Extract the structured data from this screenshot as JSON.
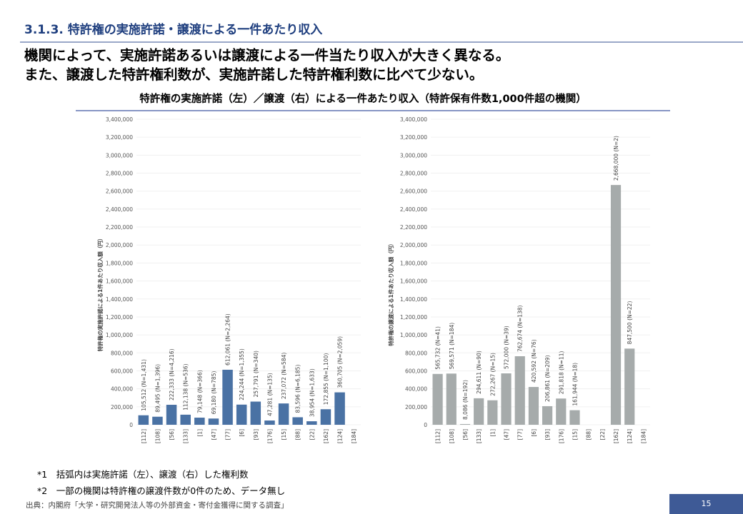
{
  "section_title": "3.1.3. 特許権の実施許諾・譲渡による一件あたり収入",
  "headline": [
    "機関によって、実施許諾あるいは譲渡による一件当たり収入が大きく異なる。",
    "また、譲渡した特許権利数が、実施許諾した特許権利数に比べて少ない。"
  ],
  "chart_title": "特許権の実施許諾（左）／譲渡（右）による一件あたり収入（特許保有件数1,000件超の機関）",
  "chart_data": [
    {
      "type": "bar",
      "ylabel": "特許権の実施許諾による1件あたり収入額（円）",
      "ylim": [
        0,
        3400000
      ],
      "yticks": [
        "0",
        "200,000",
        "400,000",
        "600,000",
        "800,000",
        "1,000,000",
        "1,200,000",
        "1,400,000",
        "1,600,000",
        "1,800,000",
        "2,000,000",
        "2,200,000",
        "2,400,000",
        "2,600,000",
        "2,800,000",
        "3,000,000",
        "3,200,000",
        "3,400,000"
      ],
      "grid": true,
      "color": "#4a72a4",
      "categories": [
        "[112]",
        "[108]",
        "[56]",
        "[133]",
        "[1]",
        "[47]",
        "[77]",
        "[6]",
        "[93]",
        "[176]",
        "[15]",
        "[88]",
        "[22]",
        "[162]",
        "[124]",
        "[184]"
      ],
      "values": [
        105512,
        89495,
        222333,
        112138,
        79148,
        69180,
        612061,
        224244,
        257791,
        47281,
        237072,
        83596,
        38954,
        172855,
        360705,
        null
      ],
      "labels": [
        "105,512 (N=1,431)",
        "89,495 (N=1,396)",
        "222,333 (N=4,216)",
        "112,138 (N=536)",
        "79,148 (N=366)",
        "69,180 (N=785)",
        "612,061 (N=2,264)",
        "224,244 (N=1,355)",
        "257,791 (N=340)",
        "47,281 (N=135)",
        "237,072 (N=584)",
        "83,596 (N=6,185)",
        "38,954 (N=1,633)",
        "172,855 (N=1,100)",
        "360,705 (N=2,059)",
        ""
      ]
    },
    {
      "type": "bar",
      "ylabel": "特許権の譲渡による1件あたり収入額（円）",
      "ylim": [
        0,
        3400000
      ],
      "yticks": [
        "0",
        "200,000",
        "400,000",
        "600,000",
        "800,000",
        "1,000,000",
        "1,200,000",
        "1,400,000",
        "1,600,000",
        "1,800,000",
        "2,000,000",
        "2,200,000",
        "2,400,000",
        "2,600,000",
        "2,800,000",
        "3,000,000",
        "3,200,000",
        "3,400,000"
      ],
      "grid": true,
      "color": "#a6abab",
      "categories": [
        "[112]",
        "[108]",
        "[56]",
        "[133]",
        "[1]",
        "[47]",
        "[77]",
        "[6]",
        "[93]",
        "[176]",
        "[15]",
        "[88]",
        "[22]",
        "[162]",
        "[124]",
        "[184]"
      ],
      "values": [
        565732,
        569571,
        8086,
        294611,
        272267,
        572000,
        762674,
        420592,
        206861,
        291818,
        161944,
        null,
        null,
        2668000,
        847500,
        null
      ],
      "labels": [
        "565,732 (N=41)",
        "569,571 (N=184)",
        "8,086 (N=192)",
        "294,611 (N=90)",
        "272,267 (N=15)",
        "572,000 (N=39)",
        "762,674 (N=138)",
        "420,592 (N=76)",
        "206,861 (N=209)",
        "291,818 (N=11)",
        "161,944 (N=18)",
        "",
        "",
        "2,668,000 (N=2)",
        "847,500 (N=22)",
        ""
      ]
    }
  ],
  "notes": [
    "*1　括弧内は実施許諾（左）、譲渡（右）した権利数",
    "*2　一部の機関は特許権の譲渡件数が0件のため、データ無し"
  ],
  "source": "出典：内閣府「大学・研究開発法人等の外部資金・寄付金獲得に関する調査」",
  "page_number": "15"
}
